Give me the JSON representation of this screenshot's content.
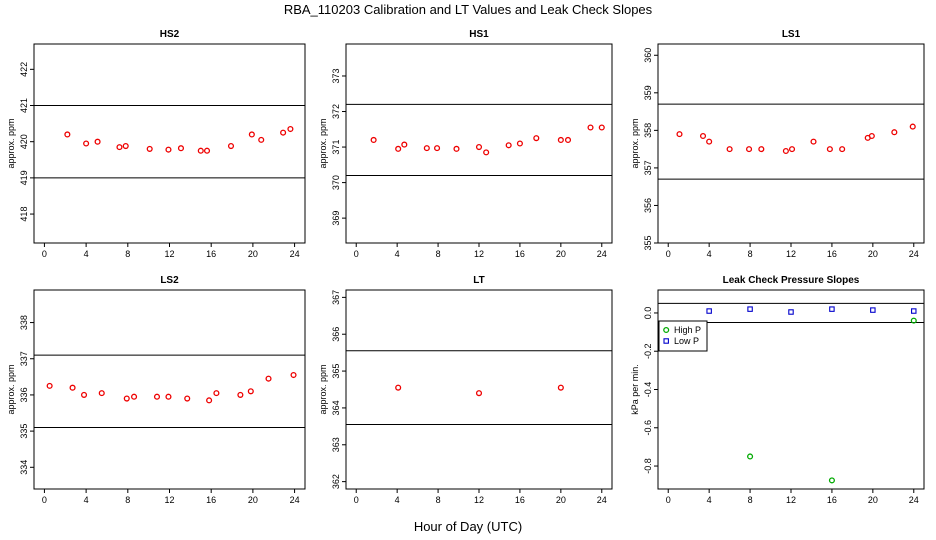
{
  "figure": {
    "title": "RBA_110203  Calibration and LT Values and Leak Check Slopes",
    "xlabel": "Hour of Day (UTC)"
  },
  "colors": {
    "points": "#ee0000",
    "high_p": "#00aa00",
    "low_p": "#0000cc",
    "frame": "#000000"
  },
  "chart_data": [
    {
      "id": "hs2",
      "type": "scatter",
      "title": "HS2",
      "ylabel": "approx. ppm",
      "xlim": [
        -1,
        25
      ],
      "ylim": [
        417.2,
        422.7
      ],
      "xticks": [
        0,
        4,
        8,
        12,
        16,
        20,
        24
      ],
      "yticks": [
        418,
        419,
        420,
        421,
        422
      ],
      "hlines": [
        421,
        419
      ],
      "series": [
        {
          "marker": "o",
          "color": "#ee0000",
          "x": [
            2.2,
            4,
            5.1,
            7.2,
            7.8,
            10.1,
            11.9,
            13.1,
            15,
            15.6,
            17.9,
            19.9,
            20.8,
            22.9,
            23.6
          ],
          "y": [
            420.2,
            419.95,
            420.0,
            419.85,
            419.88,
            419.8,
            419.78,
            419.82,
            419.75,
            419.75,
            419.88,
            420.2,
            420.05,
            420.25,
            420.35
          ]
        }
      ]
    },
    {
      "id": "hs1",
      "type": "scatter",
      "title": "HS1",
      "ylabel": "approx. ppm",
      "xlim": [
        -1,
        25
      ],
      "ylim": [
        368.3,
        373.9
      ],
      "xticks": [
        0,
        4,
        8,
        12,
        16,
        20,
        24
      ],
      "yticks": [
        369,
        370,
        371,
        372,
        373
      ],
      "hlines": [
        372.2,
        370.2
      ],
      "series": [
        {
          "marker": "o",
          "color": "#ee0000",
          "x": [
            1.7,
            4.1,
            4.7,
            6.9,
            7.9,
            9.8,
            12,
            12.7,
            14.9,
            16,
            17.6,
            20,
            20.7,
            22.9,
            24
          ],
          "y": [
            371.2,
            370.95,
            371.07,
            370.97,
            370.97,
            370.95,
            371.0,
            370.85,
            371.05,
            371.1,
            371.25,
            371.2,
            371.2,
            371.55,
            371.55
          ]
        }
      ]
    },
    {
      "id": "ls1",
      "type": "scatter",
      "title": "LS1",
      "ylabel": "approx. ppm",
      "xlim": [
        -1,
        25
      ],
      "ylim": [
        355,
        360.3
      ],
      "xticks": [
        0,
        4,
        8,
        12,
        16,
        20,
        24
      ],
      "yticks": [
        355,
        356,
        357,
        358,
        359,
        360
      ],
      "hlines": [
        358.7,
        356.7
      ],
      "series": [
        {
          "marker": "o",
          "color": "#ee0000",
          "x": [
            1.1,
            3.4,
            4,
            6,
            7.9,
            9.1,
            11.5,
            12.1,
            14.2,
            15.8,
            17,
            19.5,
            19.9,
            22.1,
            23.9
          ],
          "y": [
            357.9,
            357.85,
            357.7,
            357.5,
            357.5,
            357.5,
            357.45,
            357.5,
            357.7,
            357.5,
            357.5,
            357.8,
            357.85,
            357.95,
            358.1
          ]
        }
      ]
    },
    {
      "id": "ls2",
      "type": "scatter",
      "title": "LS2",
      "ylabel": "approx. ppm",
      "xlim": [
        -1,
        25
      ],
      "ylim": [
        333.4,
        338.9
      ],
      "xticks": [
        0,
        4,
        8,
        12,
        16,
        20,
        24
      ],
      "yticks": [
        334,
        335,
        336,
        337,
        338
      ],
      "hlines": [
        337.1,
        335.1
      ],
      "series": [
        {
          "marker": "o",
          "color": "#ee0000",
          "x": [
            0.5,
            2.7,
            3.8,
            5.5,
            7.9,
            8.6,
            10.8,
            11.9,
            13.7,
            15.8,
            16.5,
            18.8,
            19.8,
            21.5,
            23.9
          ],
          "y": [
            336.25,
            336.2,
            336.0,
            336.05,
            335.9,
            335.95,
            335.95,
            335.95,
            335.9,
            335.85,
            336.05,
            336.0,
            336.1,
            336.45,
            336.55
          ]
        }
      ]
    },
    {
      "id": "lt",
      "type": "scatter",
      "title": "LT",
      "ylabel": "approx. ppm",
      "xlim": [
        -1,
        25
      ],
      "ylim": [
        361.8,
        367.2
      ],
      "xticks": [
        0,
        4,
        8,
        12,
        16,
        20,
        24
      ],
      "yticks": [
        362,
        363,
        364,
        365,
        366,
        367
      ],
      "hlines": [
        365.55,
        363.55
      ],
      "series": [
        {
          "marker": "o",
          "color": "#ee0000",
          "x": [
            4.1,
            12,
            20
          ],
          "y": [
            364.55,
            364.4,
            364.55
          ]
        }
      ]
    },
    {
      "id": "leak",
      "type": "scatter",
      "title": "Leak Check Pressure Slopes",
      "ylabel": "kPa per min.",
      "xlim": [
        -1,
        25
      ],
      "ylim": [
        -0.92,
        0.12
      ],
      "xticks": [
        0,
        4,
        8,
        12,
        16,
        20,
        24
      ],
      "yticks": [
        0.0,
        -0.2,
        -0.4,
        -0.6,
        -0.8
      ],
      "ytick_labels": [
        "0.0",
        "-0.2",
        "-0.4",
        "-0.6",
        "-0.8"
      ],
      "hlines": [
        0.05,
        -0.05
      ],
      "legend": {
        "placement": "top-left",
        "entries": [
          "High P",
          "Low P"
        ]
      },
      "series": [
        {
          "name": "High P",
          "marker": "o",
          "color": "#00aa00",
          "x": [
            8,
            16,
            24
          ],
          "y": [
            -0.75,
            -0.875,
            -0.04
          ]
        },
        {
          "name": "Low P",
          "marker": "s",
          "color": "#0000cc",
          "x": [
            4,
            8,
            12,
            16,
            20,
            24
          ],
          "y": [
            0.01,
            0.02,
            0.005,
            0.02,
            0.015,
            0.01
          ]
        }
      ]
    }
  ]
}
